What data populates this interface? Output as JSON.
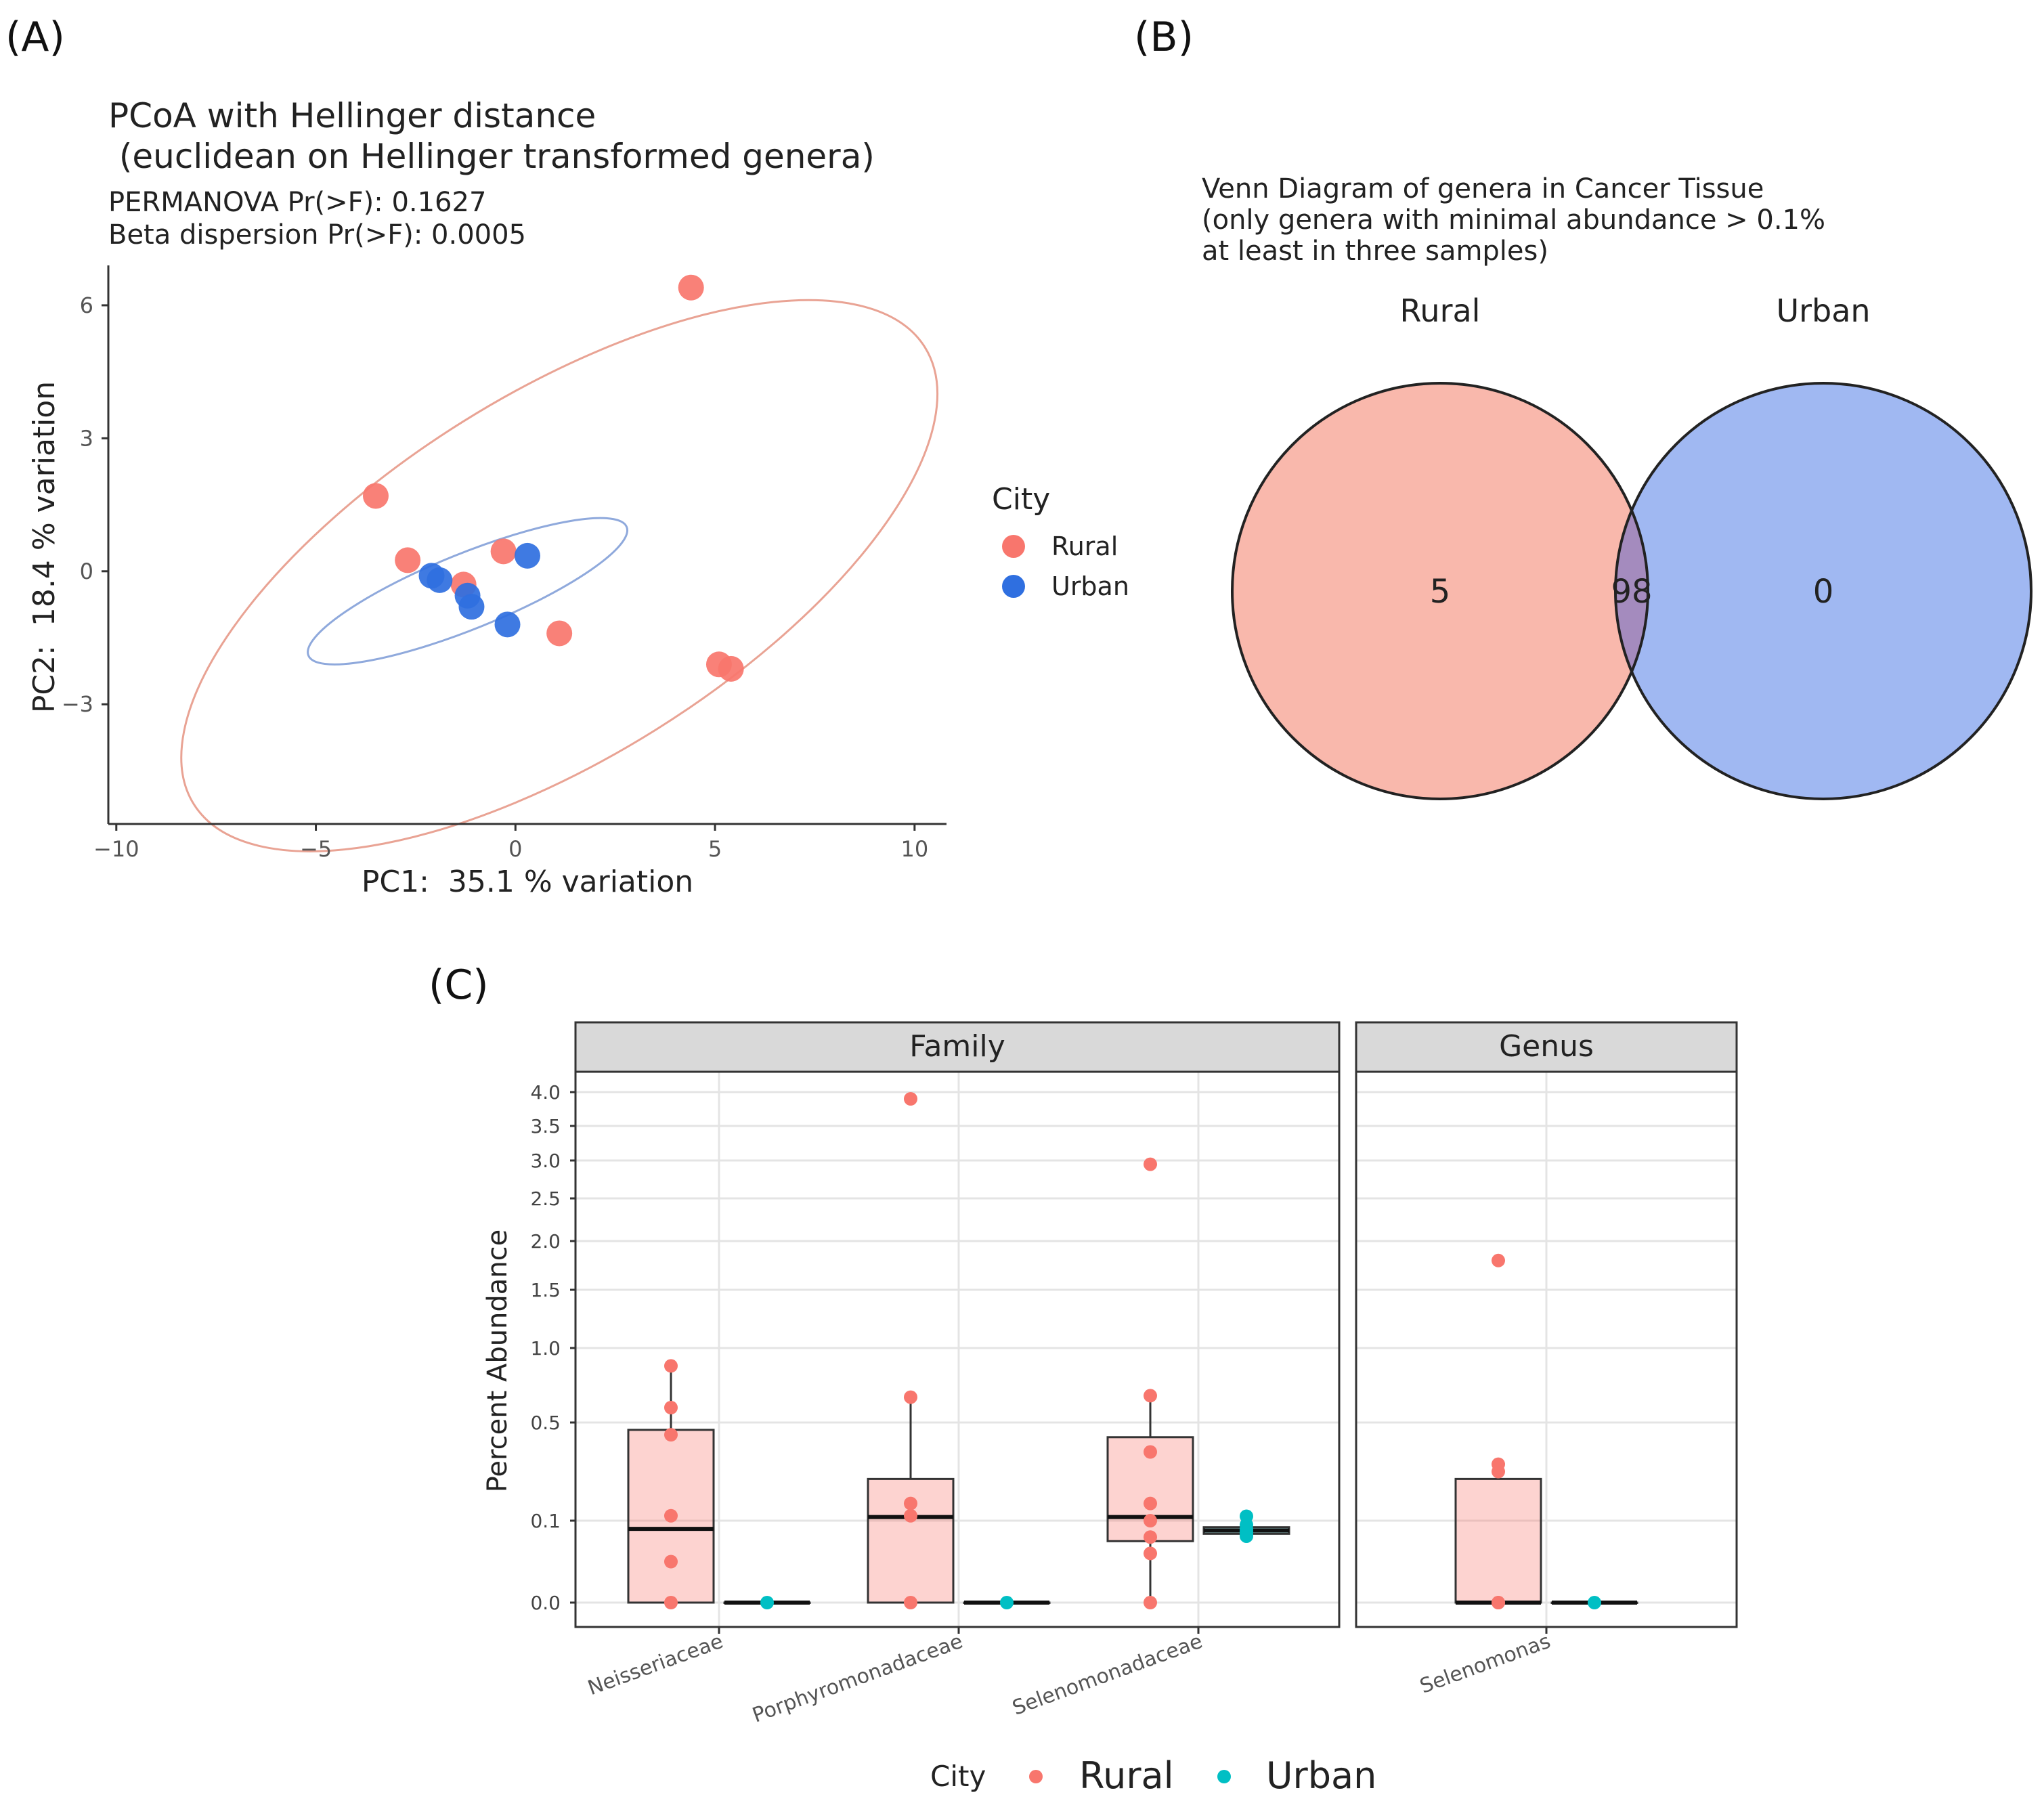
{
  "panel_labels": {
    "a": "(A)",
    "b": "(B)",
    "c": "(C)"
  },
  "colors": {
    "rural": "#f8766d",
    "urban_pcoa": "#2f6fe0",
    "urban_box": "#00bfc4",
    "venn_rural": "#f9b8ac",
    "venn_urban": "#a0b8f2",
    "venn_overlap": "#a48bbe"
  },
  "chart_data": [
    {
      "type": "scatter",
      "title": "PCoA with Hellinger distance",
      "subtitle": " (euclidean on Hellinger transformed genera)",
      "stats": [
        "PERMANOVA Pr(>F): 0.1627",
        "Beta dispersion Pr(>F): 0.0005"
      ],
      "xlabel": "PC1:  35.1 % variation",
      "ylabel": "PC2:  18.4 % variation",
      "xlim": [
        -10.2,
        10.8
      ],
      "ylim": [
        -5.7,
        6.9
      ],
      "xticks": [
        -10,
        -5,
        0,
        5,
        10
      ],
      "xtick_labels": [
        "−10",
        "−5",
        "0",
        "5",
        "10"
      ],
      "yticks": [
        6,
        3,
        0,
        -3
      ],
      "ytick_labels": [
        "6",
        "3",
        "0",
        "−3"
      ],
      "legend": {
        "title": "City",
        "entries": [
          "Rural",
          "Urban"
        ]
      },
      "series": [
        {
          "name": "Rural",
          "points": [
            [
              4.4,
              6.4
            ],
            [
              -3.5,
              1.7
            ],
            [
              -2.7,
              0.25
            ],
            [
              -1.3,
              -0.3
            ],
            [
              -0.3,
              0.45
            ],
            [
              1.1,
              -1.4
            ],
            [
              5.1,
              -2.1
            ],
            [
              5.4,
              -2.2
            ]
          ]
        },
        {
          "name": "Urban",
          "points": [
            [
              -2.1,
              -0.1
            ],
            [
              -1.9,
              -0.2
            ],
            [
              -1.2,
              -0.55
            ],
            [
              -1.1,
              -0.8
            ],
            [
              0.3,
              0.35
            ],
            [
              -0.2,
              -1.2
            ]
          ]
        }
      ],
      "ellipses": [
        {
          "name": "Rural",
          "center": [
            1.1,
            -0.1
          ],
          "semi_axes": [
            10.8,
            4.1
          ],
          "angle_deg": -32
        },
        {
          "name": "Urban",
          "center": [
            -1.2,
            -0.45
          ],
          "semi_axes": [
            4.3,
            0.85
          ],
          "angle_deg": -22
        }
      ]
    },
    {
      "type": "venn",
      "title": [
        "Venn Diagram of genera in Cancer Tissue",
        "(only genera with minimal abundance > 0.1%",
        "at least in three samples)"
      ],
      "sets": [
        {
          "name": "Rural",
          "only": "5"
        },
        {
          "name": "Urban",
          "only": "0"
        }
      ],
      "intersection": "98"
    },
    {
      "type": "box",
      "ylabel": "Percent Abundance",
      "ytick_labels": [
        "4.0",
        "3.5",
        "3.0",
        "2.5",
        "2.0",
        "1.5",
        "1.0",
        "0.5",
        "0.1",
        "0.0"
      ],
      "ytick_values": [
        4.0,
        3.5,
        3.0,
        2.5,
        2.0,
        1.5,
        1.0,
        0.5,
        0.1,
        0.0
      ],
      "legend": {
        "title": "City",
        "entries": [
          "Rural",
          "Urban"
        ]
      },
      "facets": [
        {
          "name": "Family",
          "categories": [
            {
              "name": "Neisseriaceae",
              "rural": {
                "q1": 0.0,
                "median": 0.09,
                "q3": 0.47,
                "whisker_low": 0.0,
                "whisker_high": 0.88,
                "points": [
                  0.88,
                  0.6,
                  0.45,
                  0.12,
                  0.05,
                  0.0
                ]
              },
              "urban": {
                "q1": 0.0,
                "median": 0.0,
                "q3": 0.0,
                "whisker_low": 0.0,
                "whisker_high": 0.0,
                "points": [
                  0.0
                ]
              }
            },
            {
              "name": "Porphyromonadaceae",
              "rural": {
                "q1": 0.0,
                "median": 0.115,
                "q3": 0.27,
                "whisker_low": 0.0,
                "whisker_high": 0.67,
                "points": [
                  3.9,
                  0.67,
                  0.17,
                  0.12,
                  0.0
                ]
              },
              "urban": {
                "q1": 0.0,
                "median": 0.0,
                "q3": 0.0,
                "whisker_low": 0.0,
                "whisker_high": 0.0,
                "points": [
                  0.0
                ]
              }
            },
            {
              "name": "Selenomonadaceae",
              "rural": {
                "q1": 0.075,
                "median": 0.115,
                "q3": 0.44,
                "whisker_low": 0.0,
                "whisker_high": 0.68,
                "points": [
                  2.95,
                  0.68,
                  0.38,
                  0.17,
                  0.1,
                  0.08,
                  0.06,
                  0.0
                ]
              },
              "urban": {
                "q1": 0.084,
                "median": 0.088,
                "q3": 0.092,
                "whisker_low": 0.084,
                "whisker_high": 0.092,
                "points": [
                  0.118,
                  0.095,
                  0.09,
                  0.087,
                  0.084,
                  0.081
                ]
              }
            }
          ]
        },
        {
          "name": "Genus",
          "categories": [
            {
              "name": "Selenomonas",
              "rural": {
                "q1": 0.0,
                "median": 0.0,
                "q3": 0.27,
                "whisker_low": 0.0,
                "whisker_high": 0.27,
                "points": [
                  1.8,
                  0.33,
                  0.3,
                  0.0,
                  0.0
                ]
              },
              "urban": {
                "q1": 0.0,
                "median": 0.0,
                "q3": 0.0,
                "whisker_low": 0.0,
                "whisker_high": 0.0,
                "points": [
                  0.0
                ]
              }
            }
          ]
        }
      ]
    }
  ]
}
